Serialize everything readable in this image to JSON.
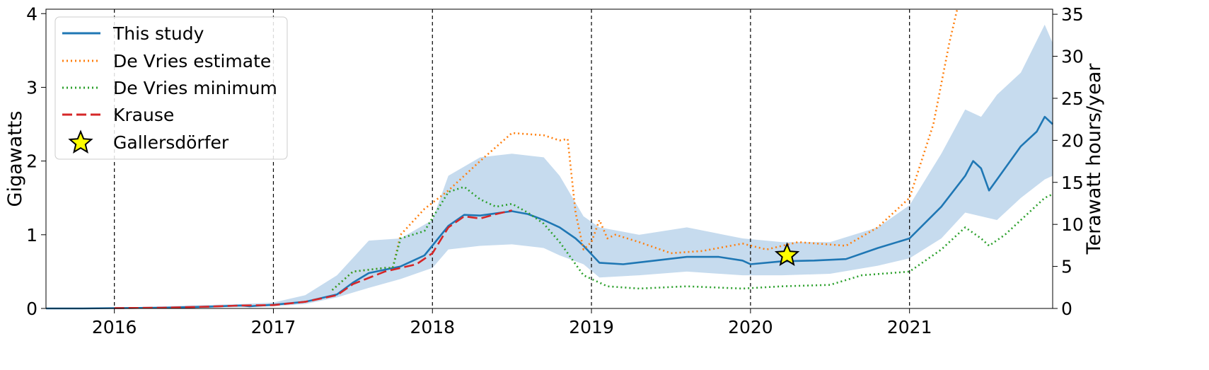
{
  "chart_data": {
    "type": "line",
    "title": "",
    "xlabel": "",
    "ylabel": "Gigawatts",
    "ylabel_right": "Terawatt hours/year",
    "xlim": [
      2015.57,
      2021.9
    ],
    "ylim": [
      0,
      4.06
    ],
    "ylim_right": [
      0,
      35.6
    ],
    "xticks": [
      2016,
      2017,
      2018,
      2019,
      2020,
      2021
    ],
    "xtick_labels": [
      "2016",
      "2017",
      "2018",
      "2019",
      "2020",
      "2021"
    ],
    "yticks": [
      0,
      1,
      2,
      3,
      4
    ],
    "ytick_labels": [
      "0",
      "1",
      "2",
      "3",
      "4"
    ],
    "yticks_right": [
      0,
      5,
      10,
      15,
      20,
      25,
      30,
      35
    ],
    "ytick_labels_right": [
      "0",
      "5",
      "10",
      "15",
      "20",
      "25",
      "30",
      "35"
    ],
    "vertical_lines": [
      2016,
      2017,
      2018,
      2019,
      2020,
      2021
    ],
    "grid": false,
    "legend_position": "upper-left",
    "series": [
      {
        "name": "This study",
        "style": "solid",
        "color": "#1f77b4",
        "x": [
          2015.57,
          2015.8,
          2016.0,
          2016.3,
          2016.6,
          2016.8,
          2016.85,
          2017.0,
          2017.2,
          2017.4,
          2017.5,
          2017.6,
          2017.8,
          2017.95,
          2018.1,
          2018.2,
          2018.3,
          2018.4,
          2018.5,
          2018.6,
          2018.7,
          2018.8,
          2018.9,
          2018.95,
          2019.05,
          2019.2,
          2019.4,
          2019.6,
          2019.8,
          2019.95,
          2020.0,
          2020.2,
          2020.4,
          2020.6,
          2020.8,
          2021.0,
          2021.2,
          2021.35,
          2021.4,
          2021.45,
          2021.5,
          2021.55,
          2021.7,
          2021.8,
          2021.85,
          2021.9
        ],
        "values": [
          0.0,
          0.0,
          0.005,
          0.01,
          0.025,
          0.04,
          0.03,
          0.05,
          0.09,
          0.19,
          0.35,
          0.48,
          0.57,
          0.72,
          1.12,
          1.27,
          1.26,
          1.29,
          1.32,
          1.28,
          1.2,
          1.1,
          0.95,
          0.85,
          0.62,
          0.6,
          0.65,
          0.7,
          0.7,
          0.65,
          0.6,
          0.64,
          0.65,
          0.67,
          0.82,
          0.95,
          1.38,
          1.8,
          2.0,
          1.9,
          1.6,
          1.75,
          2.2,
          2.4,
          2.6,
          2.5
        ]
      },
      {
        "name": "De Vries estimate",
        "style": "dotted",
        "color": "#ff7f0e",
        "x": [
          2017.37,
          2017.5,
          2017.7,
          2017.75,
          2017.8,
          2017.95,
          2018.1,
          2018.3,
          2018.5,
          2018.7,
          2018.8,
          2018.85,
          2018.9,
          2018.95,
          2019.0,
          2019.05,
          2019.1,
          2019.15,
          2019.3,
          2019.5,
          2019.7,
          2019.95,
          2020.1,
          2020.3,
          2020.6,
          2020.8,
          2021.0,
          2021.15,
          2021.25,
          2021.3
        ],
        "values": [
          0.25,
          0.5,
          0.55,
          0.55,
          1.0,
          1.35,
          1.6,
          2.0,
          2.38,
          2.35,
          2.28,
          2.3,
          1.3,
          0.8,
          0.9,
          1.2,
          0.95,
          1.0,
          0.9,
          0.75,
          0.78,
          0.88,
          0.8,
          0.9,
          0.85,
          1.1,
          1.5,
          2.5,
          3.6,
          4.06
        ]
      },
      {
        "name": "De Vries minimum",
        "style": "dotted",
        "color": "#2ca02c",
        "x": [
          2017.37,
          2017.5,
          2017.7,
          2017.75,
          2017.8,
          2017.95,
          2018.1,
          2018.2,
          2018.3,
          2018.4,
          2018.5,
          2018.6,
          2018.7,
          2018.8,
          2018.9,
          2018.95,
          2019.1,
          2019.3,
          2019.6,
          2019.95,
          2020.2,
          2020.5,
          2020.7,
          2021.0,
          2021.2,
          2021.35,
          2021.45,
          2021.5,
          2021.6,
          2021.75,
          2021.85,
          2021.9
        ],
        "values": [
          0.25,
          0.5,
          0.55,
          0.55,
          0.95,
          1.05,
          1.58,
          1.65,
          1.48,
          1.38,
          1.42,
          1.3,
          1.15,
          0.9,
          0.6,
          0.45,
          0.3,
          0.27,
          0.3,
          0.27,
          0.3,
          0.32,
          0.45,
          0.5,
          0.8,
          1.1,
          0.95,
          0.85,
          1.0,
          1.3,
          1.5,
          1.55
        ]
      },
      {
        "name": "Krause",
        "style": "dashed",
        "color": "#d62728",
        "x": [
          2016.0,
          2016.3,
          2016.6,
          2016.8,
          2017.0,
          2017.2,
          2017.4,
          2017.5,
          2017.7,
          2017.9,
          2018.0,
          2018.1,
          2018.2,
          2018.3,
          2018.4,
          2018.5
        ],
        "values": [
          0.005,
          0.01,
          0.025,
          0.04,
          0.045,
          0.09,
          0.18,
          0.33,
          0.5,
          0.6,
          0.75,
          1.1,
          1.25,
          1.22,
          1.28,
          1.33
        ]
      }
    ],
    "band": {
      "x": [
        2015.57,
        2016.0,
        2016.8,
        2017.0,
        2017.2,
        2017.4,
        2017.6,
        2017.8,
        2018.0,
        2018.1,
        2018.3,
        2018.5,
        2018.7,
        2018.8,
        2018.95,
        2019.05,
        2019.3,
        2019.6,
        2019.95,
        2020.2,
        2020.5,
        2020.8,
        2021.0,
        2021.2,
        2021.35,
        2021.45,
        2021.55,
        2021.7,
        2021.85,
        2021.9
      ],
      "upper": [
        0.0,
        0.01,
        0.06,
        0.08,
        0.18,
        0.45,
        0.92,
        0.95,
        1.2,
        1.8,
        2.05,
        2.1,
        2.05,
        1.8,
        1.25,
        1.1,
        1.0,
        1.1,
        0.95,
        0.9,
        0.9,
        1.1,
        1.4,
        2.1,
        2.7,
        2.6,
        2.9,
        3.2,
        3.85,
        3.6
      ],
      "lower": [
        0.0,
        0.0,
        0.02,
        0.03,
        0.06,
        0.15,
        0.28,
        0.4,
        0.55,
        0.8,
        0.85,
        0.87,
        0.82,
        0.72,
        0.6,
        0.42,
        0.45,
        0.5,
        0.45,
        0.45,
        0.47,
        0.58,
        0.68,
        0.95,
        1.3,
        1.25,
        1.2,
        1.5,
        1.75,
        1.8
      ],
      "color": "#c6dbee"
    },
    "markers": [
      {
        "name": "Gallersdörfer",
        "x": 2020.23,
        "y": 0.72,
        "shape": "star",
        "color": "#ffff00",
        "edge_color": "#000000"
      }
    ]
  }
}
